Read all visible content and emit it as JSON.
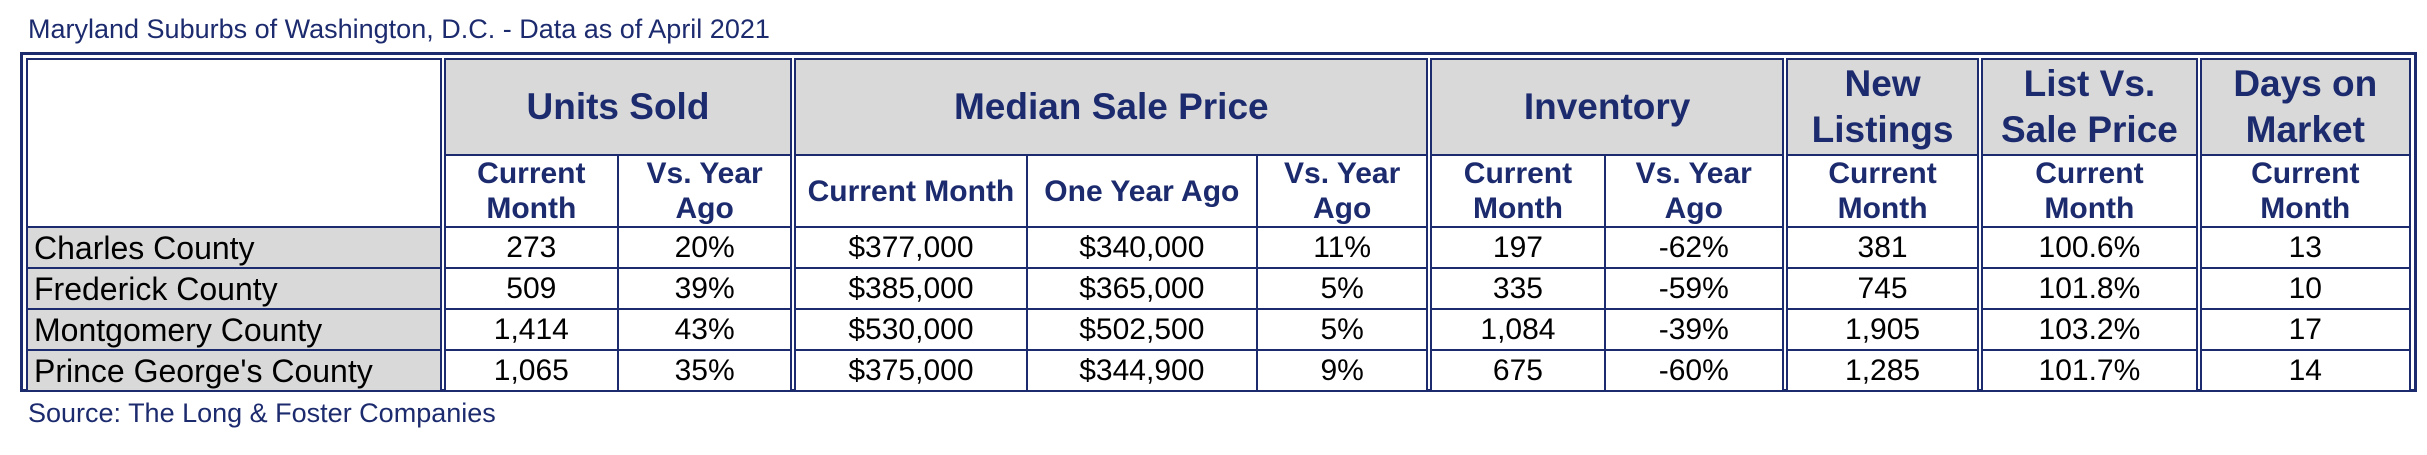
{
  "title": "Maryland Suburbs of Washington, D.C. - Data as of April 2021",
  "source": "Source: The Long & Foster Companies",
  "groups": {
    "units_sold": "Units Sold",
    "median_sale_price": "Median Sale Price",
    "inventory": "Inventory",
    "new_listings": "New Listings",
    "list_vs_sale": "List Vs. Sale Price",
    "days_on_market": "Days on Market"
  },
  "subheaders": {
    "units_current": "Current Month",
    "units_vs_year": "Vs. Year Ago",
    "price_current": "Current Month",
    "price_one_year": "One Year Ago",
    "price_vs_year": "Vs. Year Ago",
    "inv_current": "Current Month",
    "inv_vs_year": "Vs. Year Ago",
    "listings_current": "Current Month",
    "lvs_current": "Current Month",
    "dom_current": "Current Month"
  },
  "rows": [
    {
      "county": "Charles County",
      "units_current": "273",
      "units_vs": "20%",
      "price_current": "$377,000",
      "price_year": "$340,000",
      "price_vs": "11%",
      "inv_current": "197",
      "inv_vs": "-62%",
      "new_listings": "381",
      "list_vs_sale": "100.6%",
      "dom": "13"
    },
    {
      "county": "Frederick County",
      "units_current": "509",
      "units_vs": "39%",
      "price_current": "$385,000",
      "price_year": "$365,000",
      "price_vs": "5%",
      "inv_current": "335",
      "inv_vs": "-59%",
      "new_listings": "745",
      "list_vs_sale": "101.8%",
      "dom": "10"
    },
    {
      "county": "Montgomery County",
      "units_current": "1,414",
      "units_vs": "43%",
      "price_current": "$530,000",
      "price_year": "$502,500",
      "price_vs": "5%",
      "inv_current": "1,084",
      "inv_vs": "-39%",
      "new_listings": "1,905",
      "list_vs_sale": "103.2%",
      "dom": "17"
    },
    {
      "county": "Prince George's County",
      "units_current": "1,065",
      "units_vs": "35%",
      "price_current": "$375,000",
      "price_year": "$344,900",
      "price_vs": "9%",
      "inv_current": "675",
      "inv_vs": "-60%",
      "new_listings": "1,285",
      "list_vs_sale": "101.7%",
      "dom": "14"
    }
  ]
}
